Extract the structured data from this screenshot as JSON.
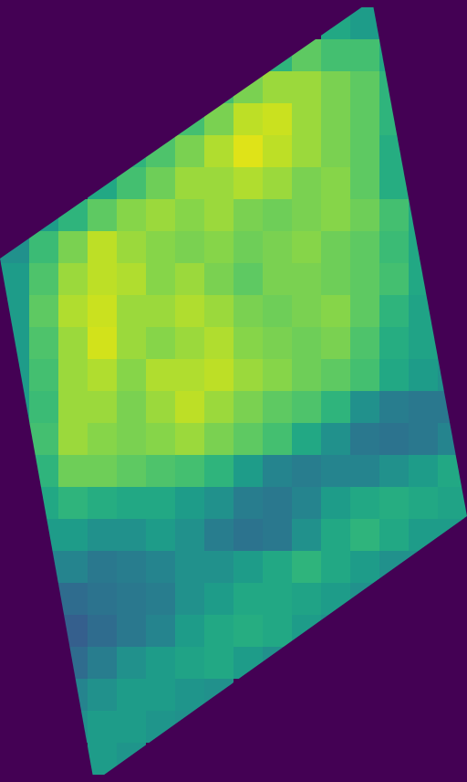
{
  "chart_data": {
    "type": "heatmap",
    "tick_labels": false,
    "color_range": [
      0,
      1
    ],
    "cells": [
      [
        null,
        null,
        null,
        null,
        null,
        null,
        null,
        null,
        null,
        null,
        null,
        0.6,
        0.55,
        null,
        null,
        null
      ],
      [
        null,
        null,
        null,
        null,
        null,
        null,
        null,
        null,
        null,
        0.65,
        0.75,
        0.7,
        0.7,
        0.6,
        null,
        null
      ],
      [
        null,
        null,
        null,
        null,
        null,
        null,
        null,
        0.7,
        0.8,
        0.85,
        0.85,
        0.8,
        0.75,
        0.65,
        null,
        null
      ],
      [
        null,
        null,
        null,
        null,
        null,
        null,
        0.7,
        0.8,
        0.9,
        0.92,
        0.85,
        0.8,
        0.75,
        0.65,
        null,
        null
      ],
      [
        null,
        null,
        null,
        null,
        0.65,
        0.72,
        0.8,
        0.88,
        0.95,
        0.9,
        0.85,
        0.8,
        0.75,
        0.62,
        null,
        null
      ],
      [
        null,
        null,
        null,
        0.6,
        0.7,
        0.78,
        0.85,
        0.85,
        0.88,
        0.85,
        0.8,
        0.82,
        0.75,
        0.62,
        null,
        null
      ],
      [
        null,
        0.55,
        0.65,
        0.75,
        0.82,
        0.85,
        0.82,
        0.85,
        0.8,
        0.78,
        0.8,
        0.82,
        0.78,
        0.7,
        0.6,
        null
      ],
      [
        0.5,
        0.68,
        0.8,
        0.9,
        0.85,
        0.82,
        0.8,
        0.82,
        0.78,
        0.8,
        0.82,
        0.78,
        0.75,
        0.68,
        0.6,
        null
      ],
      [
        0.55,
        0.72,
        0.85,
        0.9,
        0.88,
        0.82,
        0.85,
        0.8,
        0.75,
        0.8,
        0.8,
        0.78,
        0.75,
        0.7,
        0.6,
        null
      ],
      [
        0.55,
        0.75,
        0.88,
        0.92,
        0.85,
        0.85,
        0.88,
        0.85,
        0.8,
        0.78,
        0.8,
        0.82,
        0.75,
        0.65,
        0.58,
        null
      ],
      [
        0.55,
        0.72,
        0.85,
        0.93,
        0.85,
        0.82,
        0.85,
        0.88,
        0.82,
        0.8,
        0.78,
        0.8,
        0.72,
        0.62,
        0.58,
        0.55
      ],
      [
        0.55,
        0.7,
        0.85,
        0.88,
        0.82,
        0.88,
        0.88,
        0.9,
        0.85,
        0.82,
        0.78,
        0.75,
        0.7,
        0.6,
        0.55,
        0.5
      ],
      [
        0.55,
        0.68,
        0.85,
        0.85,
        0.8,
        0.85,
        0.9,
        0.85,
        0.8,
        0.75,
        0.72,
        0.65,
        0.5,
        0.42,
        0.4,
        0.4
      ],
      [
        null,
        0.7,
        0.85,
        0.82,
        0.8,
        0.82,
        0.85,
        0.8,
        0.75,
        0.7,
        0.6,
        0.5,
        0.4,
        0.38,
        0.4,
        0.45
      ],
      [
        null,
        0.65,
        0.78,
        0.78,
        0.75,
        0.72,
        0.7,
        0.65,
        0.55,
        0.45,
        0.42,
        0.45,
        0.45,
        0.5,
        0.55,
        0.6
      ],
      [
        null,
        0.6,
        0.65,
        0.62,
        0.6,
        0.6,
        0.55,
        0.5,
        0.42,
        0.4,
        0.45,
        0.55,
        0.6,
        0.62,
        0.6,
        0.58
      ],
      [
        null,
        0.55,
        0.55,
        0.5,
        0.5,
        0.55,
        0.5,
        0.42,
        0.38,
        0.4,
        0.5,
        0.6,
        0.65,
        0.6,
        0.55,
        0.55
      ],
      [
        null,
        0.45,
        0.45,
        0.4,
        0.42,
        0.45,
        0.5,
        0.5,
        0.55,
        0.6,
        0.65,
        0.6,
        0.55,
        0.5,
        0.5,
        null
      ],
      [
        null,
        null,
        0.35,
        0.38,
        0.4,
        0.42,
        0.5,
        0.55,
        0.6,
        0.6,
        0.58,
        0.55,
        0.5,
        null,
        null,
        null
      ],
      [
        null,
        null,
        0.3,
        0.35,
        0.4,
        0.45,
        0.55,
        0.6,
        0.62,
        0.6,
        0.55,
        0.5,
        null,
        null,
        null,
        null
      ],
      [
        null,
        null,
        0.35,
        0.42,
        0.5,
        0.55,
        0.58,
        0.6,
        0.55,
        0.5,
        null,
        null,
        null,
        null,
        null,
        null
      ],
      [
        null,
        null,
        0.45,
        0.5,
        0.55,
        0.55,
        0.52,
        0.5,
        null,
        null,
        null,
        null,
        null,
        null,
        null,
        null
      ],
      [
        null,
        null,
        0.5,
        0.55,
        0.55,
        0.52,
        0.5,
        null,
        null,
        null,
        null,
        null,
        null,
        null,
        null,
        null
      ],
      [
        null,
        null,
        null,
        0.55,
        0.52,
        null,
        null,
        null,
        null,
        null,
        null,
        null,
        null,
        null,
        null,
        null
      ]
    ]
  }
}
